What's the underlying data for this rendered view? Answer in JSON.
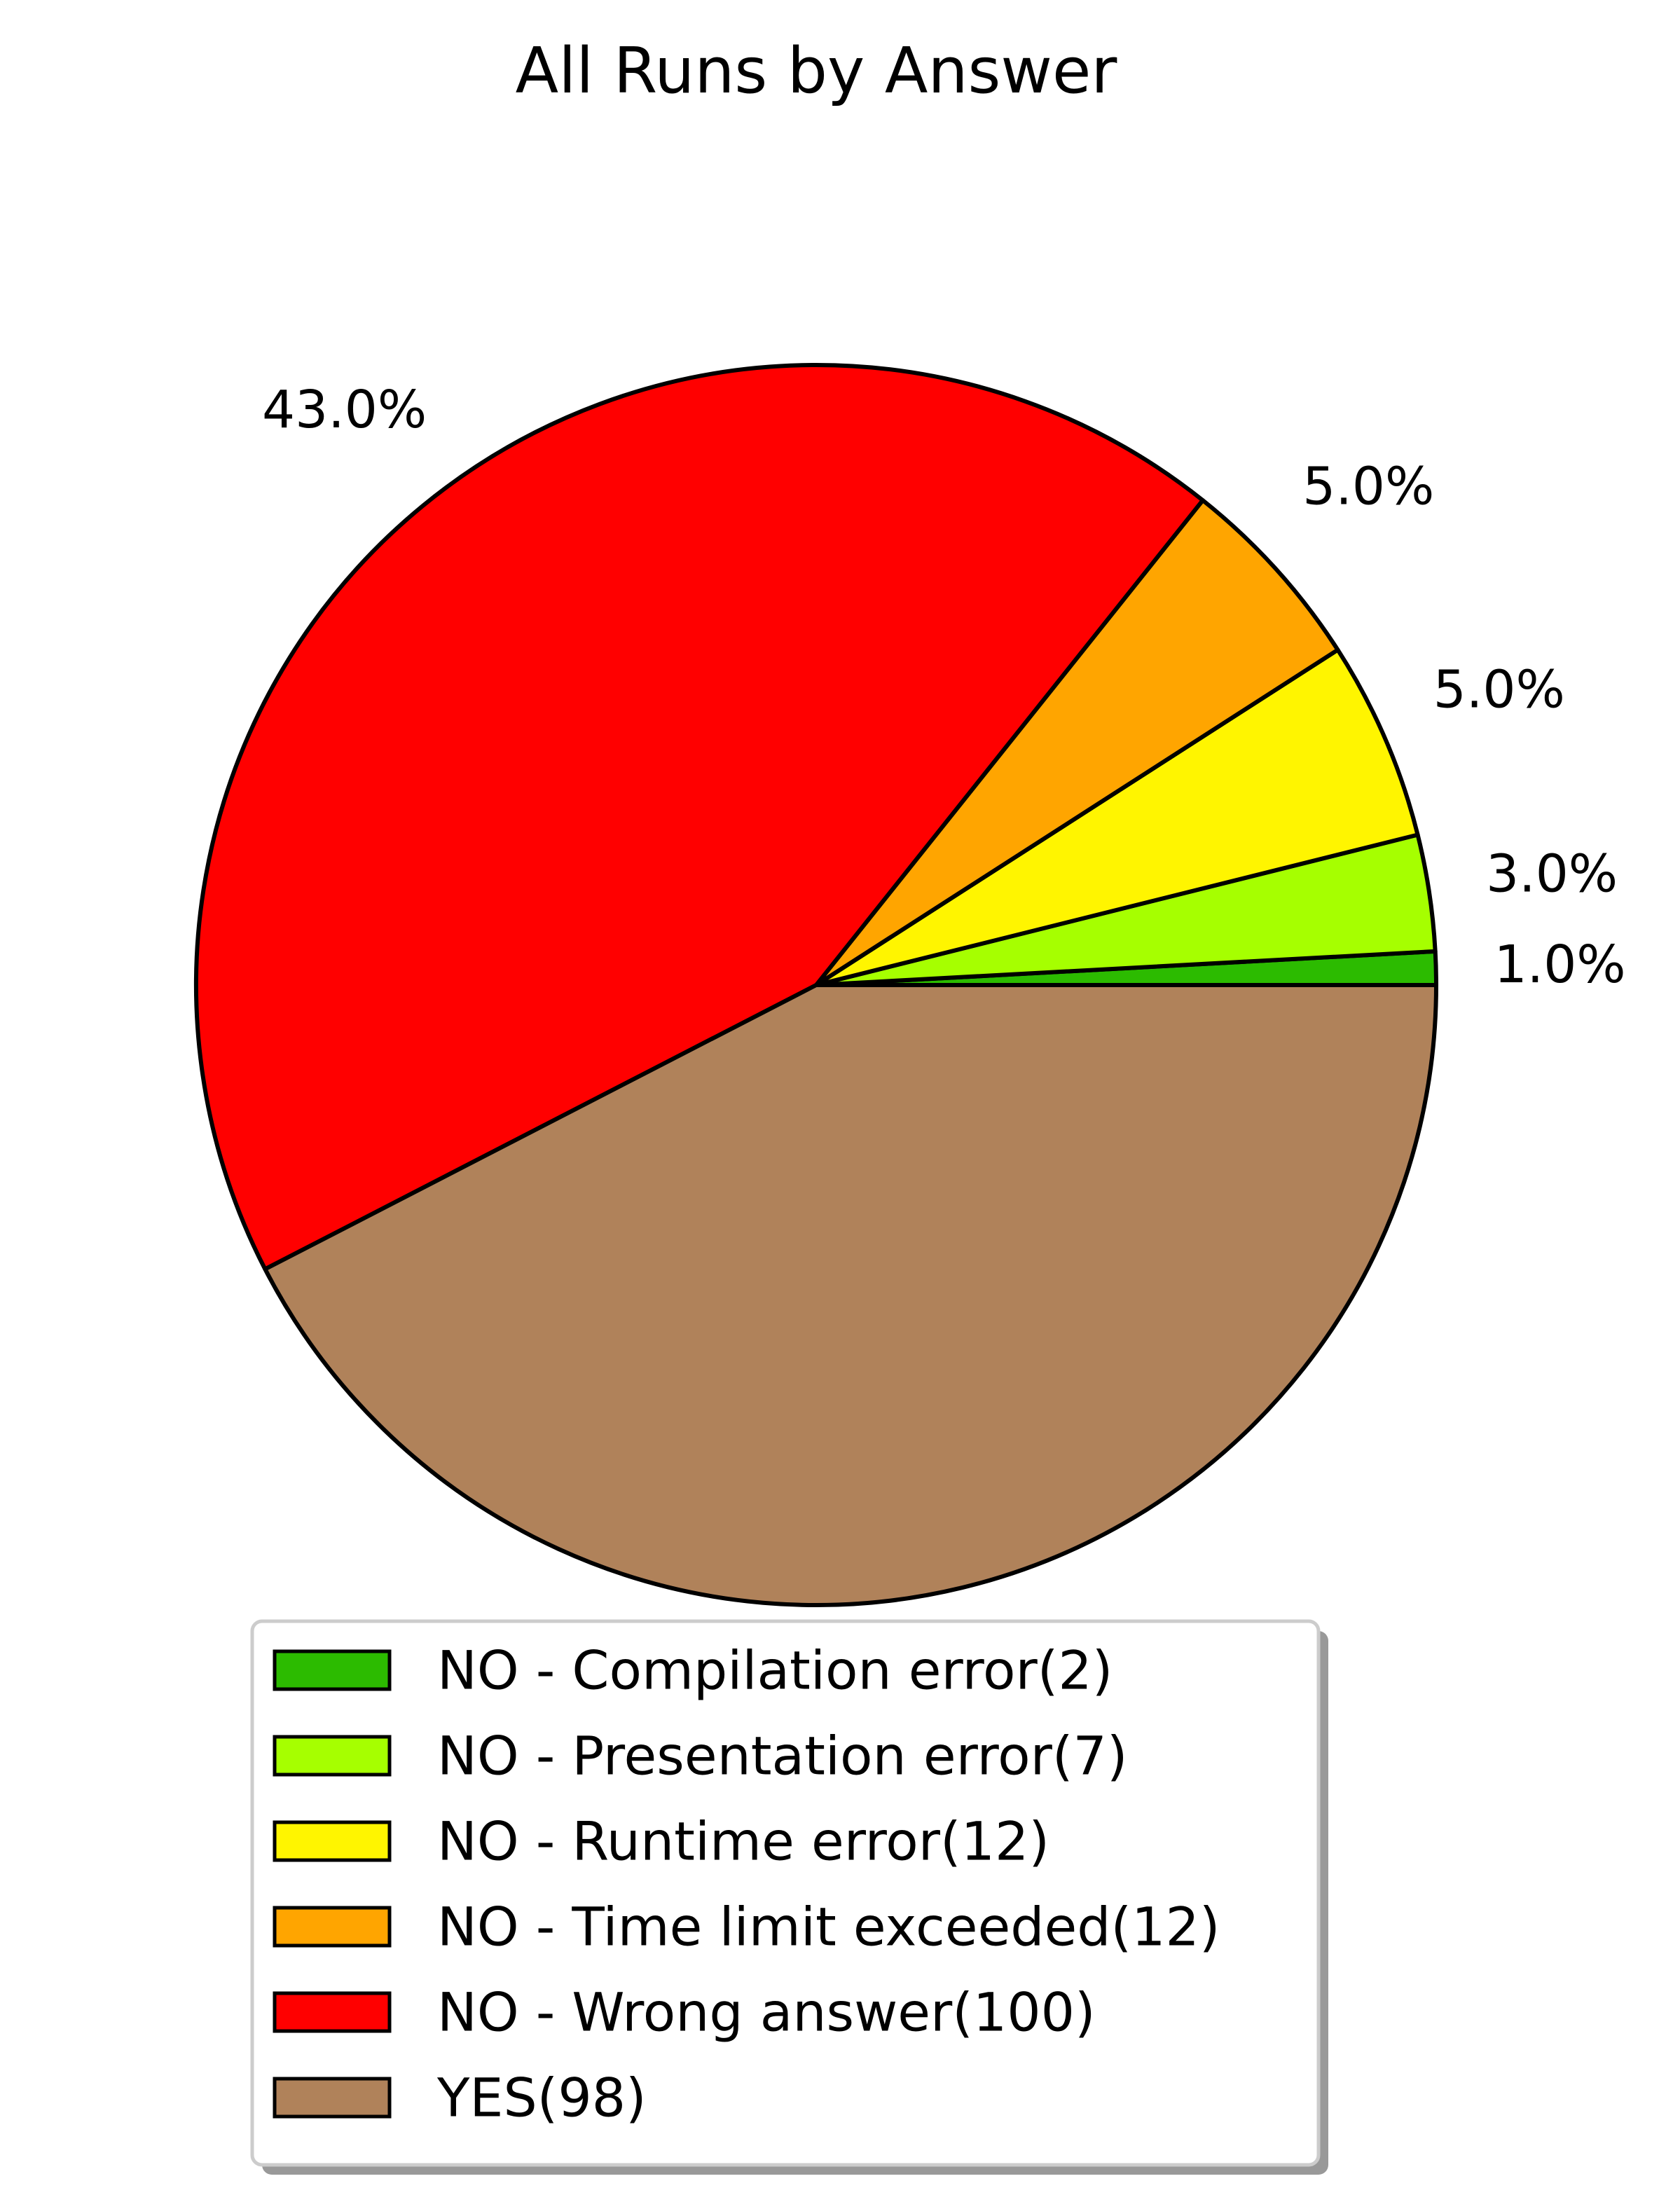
{
  "chart_data": {
    "type": "pie",
    "title": "All Runs by Answer",
    "slices": [
      {
        "label": "NO - Compilation error(2)",
        "value": 2,
        "percent_label": "1.0%",
        "color": "#2cbb00"
      },
      {
        "label": "NO - Presentation error(7)",
        "value": 7,
        "percent_label": "3.0%",
        "color": "#a6ff00"
      },
      {
        "label": "NO - Runtime error(12)",
        "value": 12,
        "percent_label": "5.0%",
        "color": "#fff500"
      },
      {
        "label": "NO - Time limit exceeded(12)",
        "value": 12,
        "percent_label": "5.0%",
        "color": "#ffa500"
      },
      {
        "label": "NO - Wrong answer(100)",
        "value": 100,
        "percent_label": "43.0%",
        "color": "#ff0000"
      },
      {
        "label": "YES(98)",
        "value": 98,
        "percent_label": "",
        "color": "#b0825a"
      }
    ],
    "start_angle_deg": 0,
    "direction": "counterclockwise",
    "legend_position": "bottom-center"
  }
}
